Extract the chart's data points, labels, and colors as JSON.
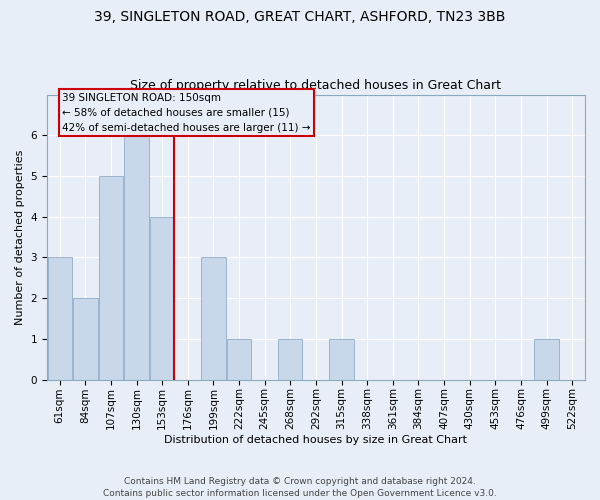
{
  "title": "39, SINGLETON ROAD, GREAT CHART, ASHFORD, TN23 3BB",
  "subtitle": "Size of property relative to detached houses in Great Chart",
  "xlabel": "Distribution of detached houses by size in Great Chart",
  "ylabel": "Number of detached properties",
  "categories": [
    "61sqm",
    "84sqm",
    "107sqm",
    "130sqm",
    "153sqm",
    "176sqm",
    "199sqm",
    "222sqm",
    "245sqm",
    "268sqm",
    "292sqm",
    "315sqm",
    "338sqm",
    "361sqm",
    "384sqm",
    "407sqm",
    "430sqm",
    "453sqm",
    "476sqm",
    "499sqm",
    "522sqm"
  ],
  "values": [
    3,
    2,
    5,
    6,
    4,
    0,
    3,
    1,
    0,
    1,
    0,
    1,
    0,
    0,
    0,
    0,
    0,
    0,
    0,
    1,
    0
  ],
  "bar_color": "#c8d8ea",
  "bar_edgecolor": "#9ab4cc",
  "vline_color": "#cc0000",
  "vline_idx": 4,
  "annotation_lines": [
    "39 SINGLETON ROAD: 150sqm",
    "← 58% of detached houses are smaller (15)",
    "42% of semi-detached houses are larger (11) →"
  ],
  "ylim": [
    0,
    7
  ],
  "yticks": [
    0,
    1,
    2,
    3,
    4,
    5,
    6,
    7
  ],
  "background_color": "#e8eef8",
  "grid_color": "#ffffff",
  "footer": "Contains HM Land Registry data © Crown copyright and database right 2024.\nContains public sector information licensed under the Open Government Licence v3.0.",
  "title_fontsize": 10,
  "subtitle_fontsize": 9,
  "ylabel_fontsize": 8,
  "xlabel_fontsize": 8,
  "tick_fontsize": 7.5,
  "annotation_fontsize": 7.5,
  "footer_fontsize": 6.5
}
